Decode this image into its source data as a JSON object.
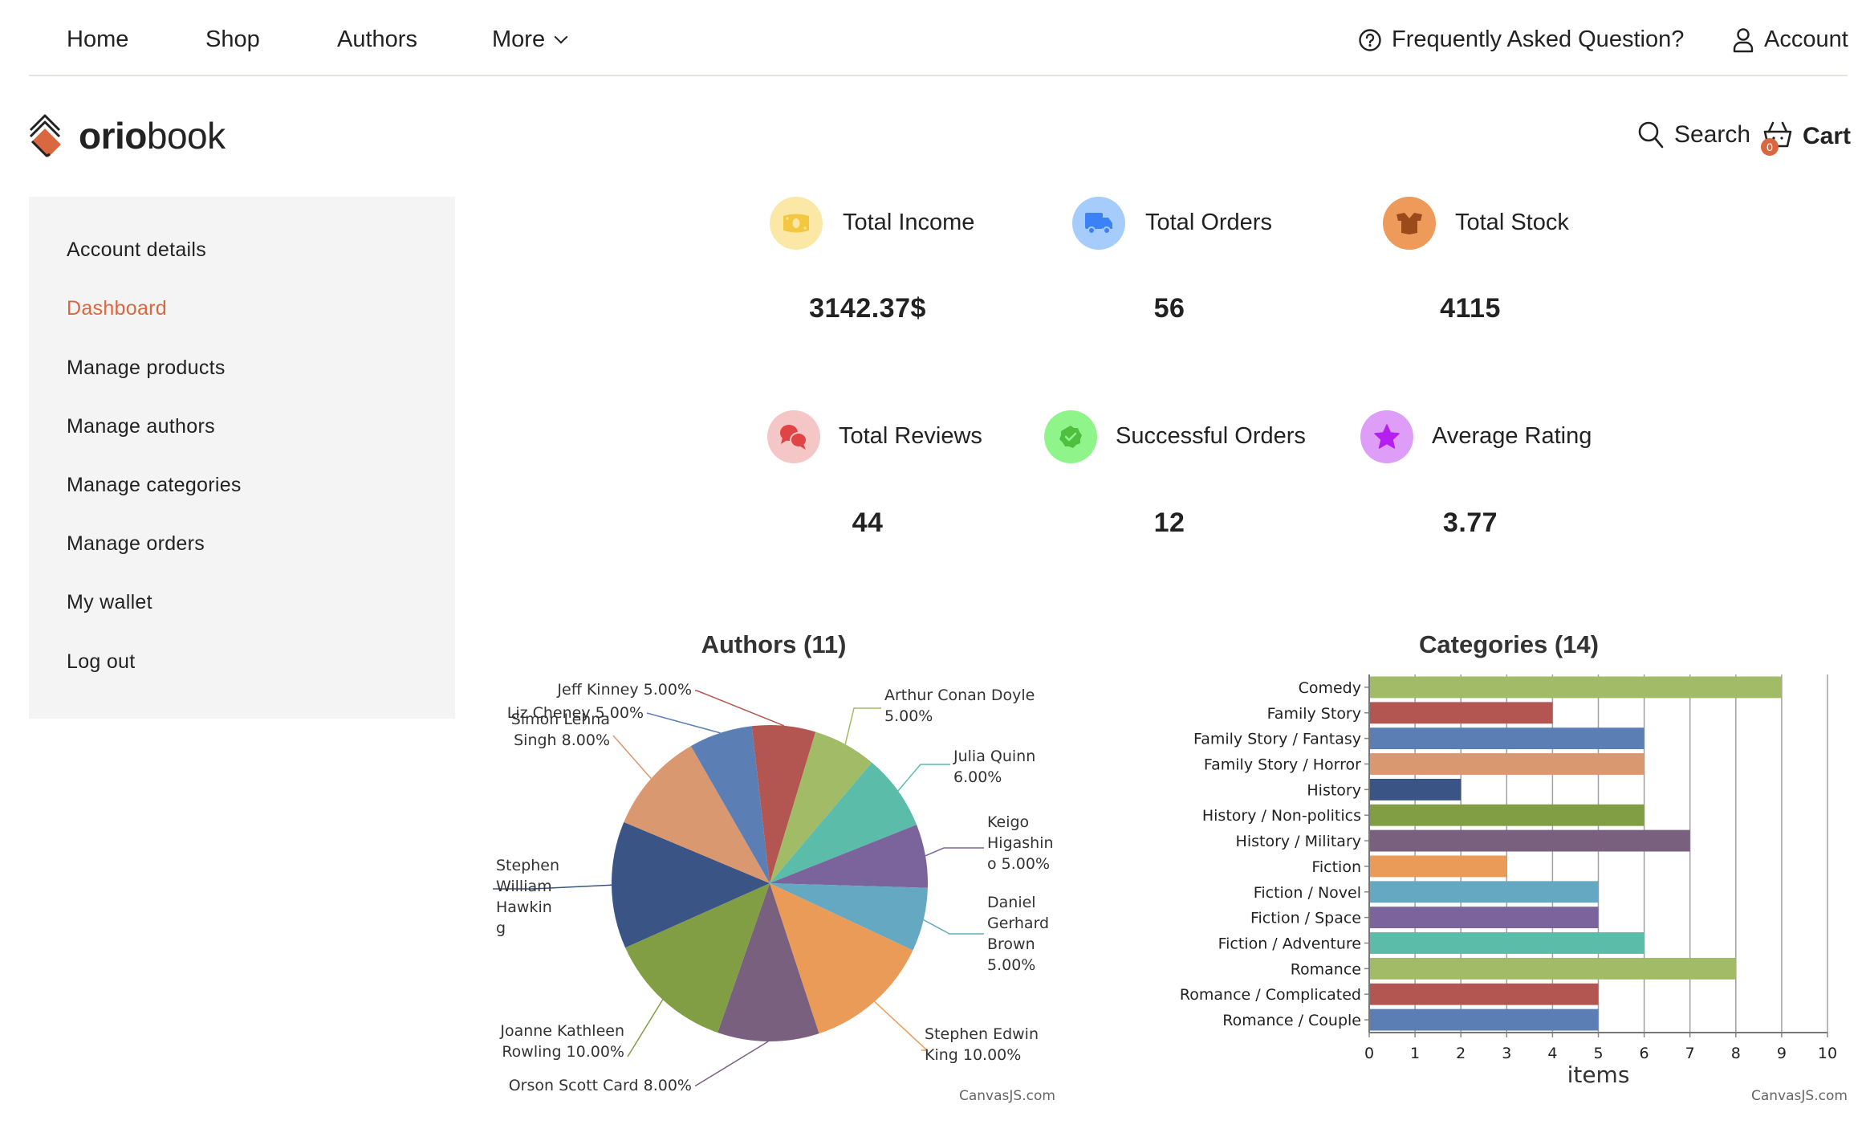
{
  "nav": {
    "links": [
      {
        "label": "Home"
      },
      {
        "label": "Shop"
      },
      {
        "label": "Authors"
      },
      {
        "label": "More",
        "icon": "chevron-down-icon"
      }
    ],
    "faq_label": "Frequently Asked Question?",
    "account_label": "Account"
  },
  "header": {
    "logo_bold": "orio",
    "logo_light": "book",
    "search_label": "Search",
    "cart_label": "Cart",
    "cart_count": "0"
  },
  "colors": {
    "accent": "#d9673f",
    "sidebar_bg": "#f4f4f4"
  },
  "sidebar": {
    "items": [
      {
        "label": "Account details",
        "active": false
      },
      {
        "label": "Dashboard",
        "active": true
      },
      {
        "label": "Manage products",
        "active": false
      },
      {
        "label": "Manage authors",
        "active": false
      },
      {
        "label": "Manage categories",
        "active": false
      },
      {
        "label": "Manage orders",
        "active": false
      },
      {
        "label": "My wallet",
        "active": false
      },
      {
        "label": "Log out",
        "active": false
      }
    ]
  },
  "stats": [
    {
      "label": "Total Income",
      "value": "3142.37$",
      "icon": "money-icon",
      "bg": "#fbe8a6",
      "fg": "#f3c73f"
    },
    {
      "label": "Total Orders",
      "value": "56",
      "icon": "truck-icon",
      "bg": "#a5ccfb",
      "fg": "#3b82f6"
    },
    {
      "label": "Total Stock",
      "value": "4115",
      "icon": "box-icon",
      "bg": "#ee9a5a",
      "fg": "#9b4a1c"
    },
    {
      "label": "Total Reviews",
      "value": "44",
      "icon": "chat-icon",
      "bg": "#f5c6c6",
      "fg": "#e04444"
    },
    {
      "label": "Successful Orders",
      "value": "12",
      "icon": "check-badge-icon",
      "bg": "#8ff58a",
      "fg": "#4fbf3f"
    },
    {
      "label": "Average Rating",
      "value": "3.77",
      "icon": "star-icon",
      "bg": "#de9ef7",
      "fg": "#b51ff0"
    }
  ],
  "chart_data": [
    {
      "type": "pie",
      "title": "Authors (11)",
      "credit": "CanvasJS.com",
      "slices": [
        {
          "name": "Jeff Kinney",
          "label_lines": [
            "Jeff Kinney 5.00%"
          ],
          "percent_label": "5.00%",
          "value": 5,
          "color": "#b35652"
        },
        {
          "name": "Arthur Conan Doyle",
          "label_lines": [
            "Arthur Conan Doyle",
            "5.00%"
          ],
          "percent_label": "5.00%",
          "value": 5,
          "color": "#a2bb66"
        },
        {
          "name": "Julia Quinn",
          "label_lines": [
            "Julia Quinn",
            "6.00%"
          ],
          "percent_label": "6.00%",
          "value": 6,
          "color": "#5bbcaa"
        },
        {
          "name": "Keigo Higashino",
          "label_lines": [
            "Keigo",
            "Higashin",
            "o 5.00%"
          ],
          "percent_label": "5.00%",
          "value": 5,
          "color": "#7b649b"
        },
        {
          "name": "Daniel Gerhard Brown",
          "label_lines": [
            "Daniel",
            "Gerhard",
            "Brown",
            "5.00%"
          ],
          "percent_label": "5.00%",
          "value": 5,
          "color": "#64a8c2"
        },
        {
          "name": "Stephen Edwin King",
          "label_lines": [
            "Stephen Edwin",
            "King 10.00%"
          ],
          "percent_label": "10.00%",
          "value": 10,
          "color": "#eb9b58"
        },
        {
          "name": "Orson Scott Card",
          "label_lines": [
            "Orson Scott Card 8.00%"
          ],
          "percent_label": "8.00%",
          "value": 8,
          "color": "#7a607f"
        },
        {
          "name": "Joanne Kathleen Rowling",
          "label_lines": [
            "Joanne Kathleen",
            "Rowling 10.00%"
          ],
          "percent_label": "10.00%",
          "value": 10,
          "color": "#819e45"
        },
        {
          "name": "Stephen William Hawking",
          "label_lines": [
            "Stephen",
            "William",
            "Hawkin",
            "g"
          ],
          "percent_label": null,
          "value": 10,
          "color": "#3a5486"
        },
        {
          "name": "Simon Lehna Singh",
          "label_lines": [
            "Simon Lehna",
            "Singh 8.00%"
          ],
          "percent_label": "8.00%",
          "value": 8,
          "color": "#d99870"
        },
        {
          "name": "Liz Cheney",
          "label_lines": [
            "Liz Cheney 5.00%"
          ],
          "percent_label": "5.00%",
          "value": 5,
          "color": "#5b7eb5"
        }
      ]
    },
    {
      "type": "bar",
      "orientation": "horizontal",
      "title": "Categories (14)",
      "xlabel": "items",
      "ylabel": "",
      "xlim": [
        0,
        10
      ],
      "ticks": [
        "0",
        "1",
        "2",
        "3",
        "4",
        "5",
        "6",
        "7",
        "8",
        "9",
        "10"
      ],
      "grid": true,
      "credit": "CanvasJS.com",
      "categories": [
        "Comedy",
        "Family Story",
        "Family Story / Fantasy",
        "Family Story / Horror",
        "History",
        "History / Non-politics",
        "History / Military",
        "Fiction",
        "Fiction / Novel",
        "Fiction / Space",
        "Fiction / Adventure",
        "Romance",
        "Romance / Complicated",
        "Romance / Couple"
      ],
      "values": [
        9,
        4,
        6,
        6,
        2,
        6,
        7,
        3,
        5,
        5,
        6,
        8,
        5,
        5
      ],
      "colors": [
        "#a2bb66",
        "#b35652",
        "#5b7eb5",
        "#d99870",
        "#3a5486",
        "#819e45",
        "#7a607f",
        "#eb9b58",
        "#64a8c2",
        "#7b649b",
        "#5bbcaa",
        "#a2bb66",
        "#b35652",
        "#5b7eb5"
      ]
    }
  ]
}
